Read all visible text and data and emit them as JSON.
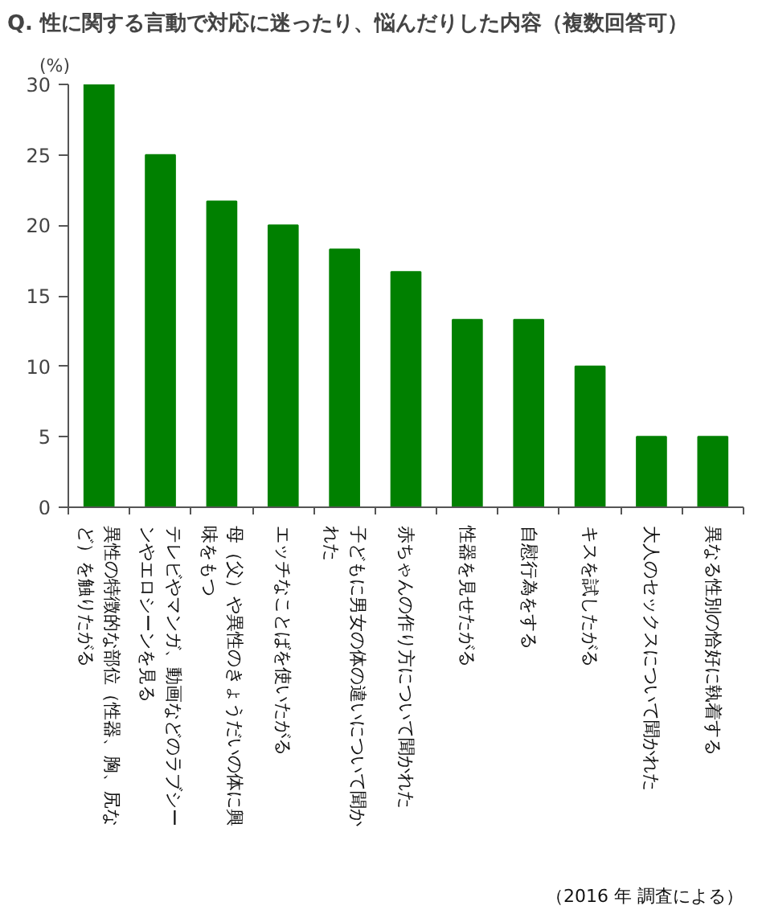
{
  "chart_data": {
    "type": "bar",
    "title": "Q. 性に関する言動で対応に迷ったり、悩んだりした内容（複数回答可）",
    "ylabel": "(%)",
    "categories": [
      "異性の特徴的な部位（性器、胸、尻など）を触りたがる",
      "テレビやマンガ、動画などのラブシーンやエロシーンを見る",
      "母（父）や異性のきょうだいの体に興味をもつ",
      "エッチなことばを使いたがる",
      "子どもに男女の体の違いについて聞かれた",
      "赤ちゃんの作り方について聞かれた",
      "性器を見せたがる",
      "自慰行為をする",
      "キスを試したがる",
      "大人のセックスについて聞かれた",
      "異なる性別の恰好に執着する"
    ],
    "values": [
      30,
      25,
      21.7,
      20,
      18.3,
      16.7,
      13.3,
      13.3,
      10,
      5,
      5
    ],
    "color": "#008000",
    "ylim": [
      0,
      30
    ],
    "yticks": [
      0,
      5,
      10,
      15,
      20,
      25,
      30
    ],
    "annotations": [
      "（2016 年 調査による）"
    ]
  }
}
